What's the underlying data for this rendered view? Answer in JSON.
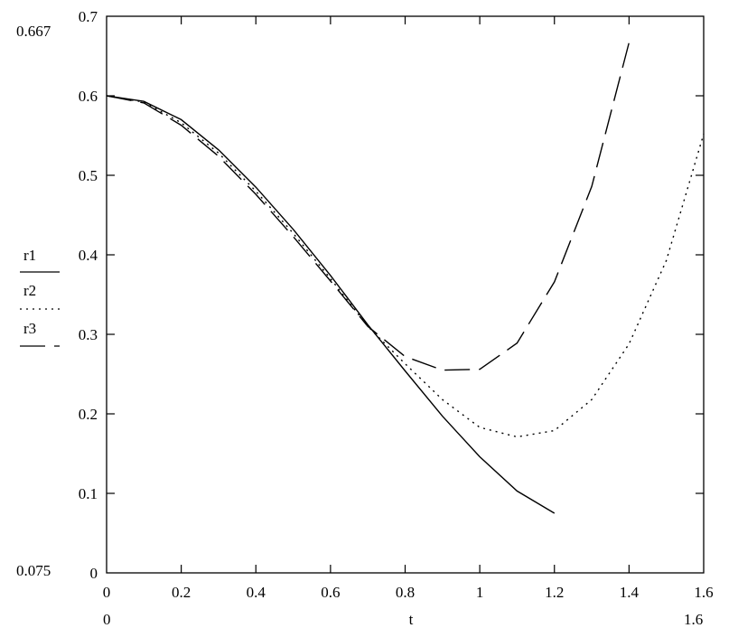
{
  "chart_data": {
    "type": "line",
    "xlabel": "t",
    "xlim": [
      0,
      1.6
    ],
    "ylim": [
      0,
      0.7
    ],
    "xticks": [
      "0",
      "0.2",
      "0.4",
      "0.6",
      "0.8",
      "1",
      "1.2",
      "1.4",
      "1.6"
    ],
    "yticks": [
      "0",
      "0.1",
      "0.2",
      "0.3",
      "0.4",
      "0.5",
      "0.6",
      "0.7"
    ],
    "axis_range_labels": {
      "y_top": "0.667",
      "y_bottom": "0.075",
      "x_left": "0",
      "x_right": "1.6"
    },
    "legend_position": "left",
    "series": [
      {
        "name": "r1",
        "style": "solid",
        "x": [
          0,
          0.1,
          0.2,
          0.3,
          0.4,
          0.5,
          0.6,
          0.7,
          0.8,
          0.9,
          1.0,
          1.1,
          1.2
        ],
        "y": [
          0.6,
          0.593,
          0.57,
          0.532,
          0.485,
          0.432,
          0.374,
          0.312,
          0.254,
          0.197,
          0.146,
          0.103,
          0.075
        ]
      },
      {
        "name": "r2",
        "style": "dotted",
        "x": [
          0,
          0.1,
          0.2,
          0.3,
          0.4,
          0.5,
          0.6,
          0.7,
          0.8,
          0.9,
          1.0,
          1.1,
          1.2,
          1.3,
          1.4,
          1.5,
          1.6
        ],
        "y": [
          0.6,
          0.592,
          0.566,
          0.528,
          0.48,
          0.427,
          0.37,
          0.31,
          0.263,
          0.218,
          0.183,
          0.171,
          0.179,
          0.218,
          0.288,
          0.393,
          0.552
        ]
      },
      {
        "name": "r3",
        "style": "dashed",
        "x": [
          0,
          0.1,
          0.2,
          0.3,
          0.4,
          0.5,
          0.6,
          0.7,
          0.8,
          0.9,
          1.0,
          1.1,
          1.2,
          1.3,
          1.4
        ],
        "y": [
          0.6,
          0.591,
          0.563,
          0.524,
          0.476,
          0.423,
          0.367,
          0.31,
          0.272,
          0.255,
          0.256,
          0.289,
          0.366,
          0.486,
          0.667
        ]
      }
    ]
  }
}
